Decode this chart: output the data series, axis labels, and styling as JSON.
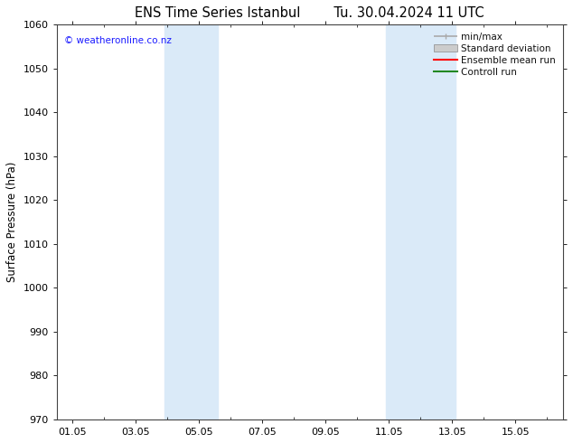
{
  "title_left": "ENS Time Series Istanbul",
  "title_right": "Tu. 30.04.2024 11 UTC",
  "ylabel": "Surface Pressure (hPa)",
  "ylim": [
    970,
    1060
  ],
  "yticks": [
    970,
    980,
    990,
    1000,
    1010,
    1020,
    1030,
    1040,
    1050,
    1060
  ],
  "xtick_labels": [
    "01.05",
    "03.05",
    "05.05",
    "07.05",
    "09.05",
    "11.05",
    "13.05",
    "15.05"
  ],
  "xtick_positions": [
    1,
    3,
    5,
    7,
    9,
    11,
    13,
    15
  ],
  "x_min": 0.5,
  "x_max": 16.5,
  "shaded_regions": [
    {
      "start": 3.9,
      "end": 5.6
    },
    {
      "start": 10.9,
      "end": 13.1
    }
  ],
  "shaded_color": "#daeaf8",
  "background_color": "#ffffff",
  "watermark_text": "© weatheronline.co.nz",
  "watermark_color": "#1a1aff",
  "title_fontsize": 10.5,
  "axis_label_fontsize": 8.5,
  "tick_fontsize": 8,
  "legend_fontsize": 7.5,
  "watermark_fontsize": 7.5,
  "minmax_color": "#aaaaaa",
  "stddev_color": "#cccccc",
  "ensemble_color": "#ff0000",
  "control_color": "#228822"
}
